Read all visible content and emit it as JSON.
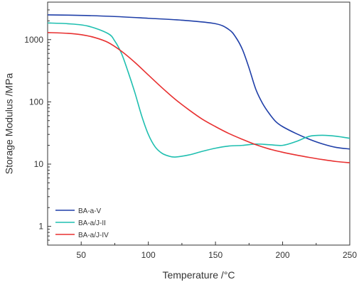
{
  "chart_data": {
    "type": "line",
    "title": "",
    "xlabel": "Temperature /°C",
    "ylabel": "Storage Modulus /MPa",
    "xlim": [
      25,
      250
    ],
    "ylim": [
      0.5,
      4000
    ],
    "yscale": "log",
    "x_ticks": [
      50,
      100,
      150,
      200,
      250
    ],
    "y_ticks": [
      1,
      10,
      100,
      1000
    ],
    "grid": false,
    "legend_position": "bottom-left",
    "series": [
      {
        "name": "BA-a-V",
        "color": "#1f3fa8",
        "x": [
          25,
          50,
          75,
          100,
          125,
          150,
          160,
          165,
          170,
          175,
          180,
          185,
          190,
          195,
          200,
          210,
          220,
          230,
          240,
          250
        ],
        "y": [
          2500,
          2450,
          2350,
          2200,
          2050,
          1800,
          1450,
          1100,
          700,
          350,
          160,
          95,
          65,
          48,
          40,
          31,
          25,
          21,
          18.5,
          17.5
        ]
      },
      {
        "name": "BA-a/J-II",
        "color": "#1fbfb0",
        "x": [
          25,
          40,
          55,
          70,
          75,
          80,
          85,
          90,
          95,
          100,
          105,
          110,
          115,
          120,
          130,
          140,
          150,
          160,
          170,
          180,
          190,
          200,
          210,
          220,
          230,
          240,
          250
        ],
        "y": [
          1850,
          1800,
          1650,
          1250,
          950,
          600,
          300,
          140,
          60,
          30,
          19,
          15,
          13.5,
          13,
          14,
          16,
          18,
          19.5,
          20,
          21,
          20.5,
          20,
          23,
          28,
          29,
          28,
          26
        ]
      },
      {
        "name": "BA-a/J-IV",
        "color": "#e83030",
        "x": [
          25,
          40,
          50,
          60,
          70,
          80,
          90,
          100,
          110,
          120,
          130,
          140,
          150,
          160,
          170,
          180,
          190,
          200,
          210,
          220,
          230,
          240,
          250
        ],
        "y": [
          1300,
          1260,
          1200,
          1080,
          900,
          650,
          430,
          270,
          170,
          110,
          75,
          53,
          40,
          31,
          25,
          20.5,
          17.5,
          15.5,
          14,
          12.8,
          11.8,
          11,
          10.5
        ]
      }
    ]
  }
}
